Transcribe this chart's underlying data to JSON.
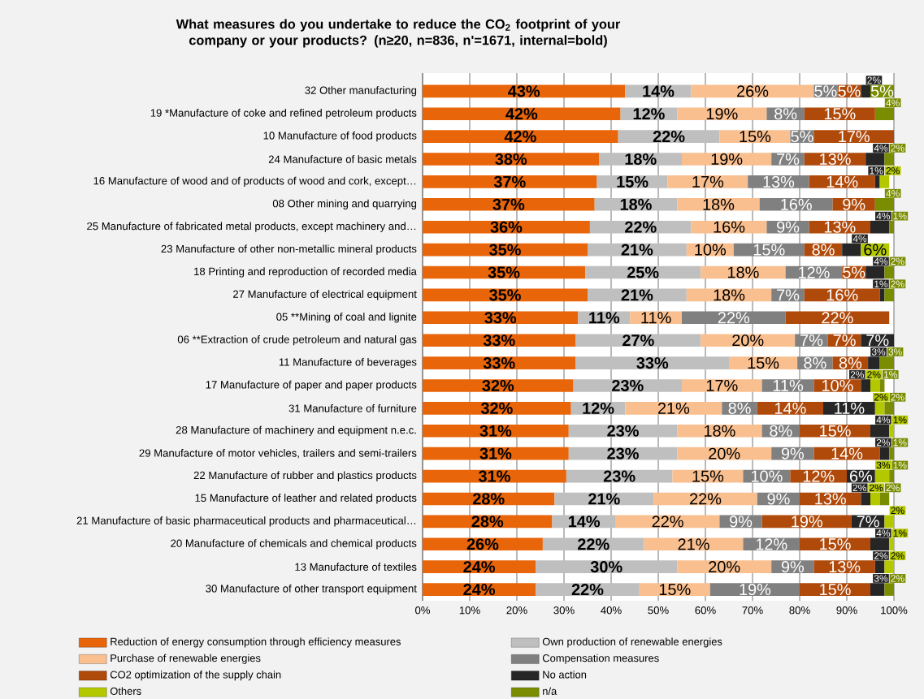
{
  "chart_data": {
    "type": "bar",
    "orientation": "horizontal",
    "stacked": true,
    "title": "What measures do you undertake to reduce the CO$_{2}$ footprint of your company or your products? (n≥20, n=836, n'=1671, internal=bold)",
    "categories": [
      "32 Other manufacturing",
      "19 *Manufacture of coke and refined petroleum products",
      "10 Manufacture of food products",
      "24 Manufacture of basic metals",
      "16 Manufacture of wood and of products of wood and cork, except…",
      "08 Other mining and quarrying",
      "25 Manufacture of fabricated metal products, except machinery and…",
      "23 Manufacture of other non-metallic mineral products",
      "18 Printing and reproduction of recorded media",
      "27 Manufacture of electrical equipment",
      "05 **Mining of coal and lignite",
      "06 **Extraction of crude petroleum and natural gas",
      "11 Manufacture of beverages",
      "17 Manufacture of paper and paper products",
      "31 Manufacture of furniture",
      "28 Manufacture of machinery and equipment n.e.c.",
      "29 Manufacture of motor vehicles, trailers and semi-trailers",
      "22 Manufacture of rubber and plastics products",
      "15 Manufacture of leather and related products",
      "21 Manufacture of basic pharmaceutical products and pharmaceutical…",
      "20 Manufacture of chemicals and chemical products",
      "13 Manufacture of textiles",
      "30 Manufacture of other transport equipment"
    ],
    "series": [
      {
        "name": "Reduction of energy consumption through efficiency measures",
        "color": "#e8650a",
        "values": [
          43,
          42,
          41.5,
          37.5,
          37,
          36.5,
          35.5,
          35,
          34.5,
          35,
          33,
          32.5,
          32.5,
          32,
          31.5,
          31,
          31,
          30.5,
          28,
          27.5,
          25.5,
          24,
          24
        ],
        "value_labels": [
          "43%",
          "42%",
          "42%",
          "38%",
          "37%",
          "37%",
          "36%",
          "35%",
          "35%",
          "35%",
          "33%",
          "33%",
          "33%",
          "32%",
          "32%",
          "31%",
          "31%",
          "31%",
          "28%",
          "28%",
          "26%",
          "24%",
          "24%"
        ]
      },
      {
        "name": "Own production of renewable energies",
        "color": "#bfbfbf",
        "values": [
          14,
          12,
          21.5,
          17.5,
          15,
          17.5,
          21.5,
          21,
          24.5,
          21,
          11,
          26.5,
          32.5,
          23,
          11.5,
          23,
          23,
          22.5,
          21,
          13.5,
          21.5,
          30,
          22
        ],
        "value_labels": [
          "14%",
          "12%",
          "22%",
          "18%",
          "15%",
          "18%",
          "22%",
          "21%",
          "25%",
          "21%",
          "11%",
          "27%",
          "33%",
          "23%",
          "12%",
          "23%",
          "23%",
          "23%",
          "21%",
          "14%",
          "22%",
          "30%",
          "22%"
        ]
      },
      {
        "name": "Purchase of renewable energies",
        "color": "#f9bf8f",
        "values": [
          26,
          19,
          15,
          19,
          17,
          17.5,
          16,
          10,
          18,
          18,
          11,
          20,
          14.5,
          17,
          20.5,
          18,
          20,
          15,
          22,
          22,
          21,
          20,
          15
        ],
        "value_labels": [
          "26%",
          "19%",
          "15%",
          "19%",
          "17%",
          "18%",
          "16%",
          "10%",
          "18%",
          "18%",
          "11%",
          "20%",
          "15%",
          "17%",
          "21%",
          "18%",
          "20%",
          "15%",
          "22%",
          "22%",
          "21%",
          "20%",
          "15%"
        ]
      },
      {
        "name": "Compensation measures",
        "color": "#808080",
        "values": [
          5,
          8,
          5,
          7,
          13,
          15.5,
          9,
          15,
          12,
          7,
          22,
          7,
          7.5,
          11,
          7.5,
          8,
          9,
          10,
          9,
          9,
          12,
          9,
          19
        ],
        "value_labels": [
          "5%",
          "8%",
          "5%",
          "7%",
          "13%",
          "16%",
          "9%",
          "15%",
          "12%",
          "7%",
          "22%",
          "7%",
          "8%",
          "11%",
          "8%",
          "8%",
          "9%",
          "10%",
          "9%",
          "9%",
          "12%",
          "9%",
          "19%"
        ]
      },
      {
        "name": "CO2 optimization of the supply chain",
        "color": "#b04a0b",
        "values": [
          5,
          15,
          17,
          13,
          14,
          9,
          13,
          8,
          5,
          16,
          22,
          7,
          7.5,
          10,
          14,
          15,
          14,
          12,
          13,
          19,
          15,
          13,
          15
        ],
        "value_labels": [
          "5%",
          "15%",
          "17%",
          "13%",
          "14%",
          "9%",
          "13%",
          "8%",
          "5%",
          "16%",
          "22%",
          "7%",
          "8%",
          "10%",
          "14%",
          "15%",
          "14%",
          "12%",
          "13%",
          "19%",
          "15%",
          "13%",
          "15%"
        ]
      },
      {
        "name": "No action",
        "color": "#262626",
        "values": [
          2,
          null,
          null,
          4,
          1,
          null,
          4,
          4,
          4,
          1,
          null,
          7,
          2.5,
          2,
          11,
          4,
          2,
          6,
          2,
          7,
          4,
          2,
          3
        ],
        "value_labels": [
          "2%",
          null,
          null,
          "4%",
          "1%",
          null,
          "4%",
          "4%",
          "4%",
          "1%",
          null,
          "7%",
          "3%",
          "2%",
          "11%",
          "4%",
          "2%",
          "6%",
          "2%",
          "7%",
          "4%",
          "2%",
          "3%"
        ]
      },
      {
        "name": "Others",
        "color": "#b4c800",
        "values": [
          null,
          null,
          null,
          null,
          2,
          null,
          null,
          6,
          null,
          null,
          null,
          null,
          null,
          2,
          2,
          1,
          null,
          3,
          2,
          2,
          1,
          2,
          null
        ],
        "value_labels": [
          null,
          null,
          null,
          null,
          "2%",
          null,
          null,
          "6%",
          null,
          null,
          null,
          null,
          null,
          "2%",
          "2%",
          "1%",
          null,
          "3%",
          "2%",
          "2%",
          "1%",
          "2%",
          null
        ]
      },
      {
        "name": "n/a",
        "color": "#7a8c00",
        "values": [
          5,
          4,
          null,
          2,
          null,
          4,
          1,
          null,
          2,
          2,
          null,
          null,
          3,
          1,
          2,
          null,
          1,
          1,
          2,
          null,
          null,
          null,
          2
        ],
        "value_labels": [
          "5%",
          "4%",
          null,
          "2%",
          null,
          "4%",
          "1%",
          null,
          "2%",
          "2%",
          null,
          null,
          "3%",
          "1%",
          "2%",
          null,
          "1%",
          "1%",
          "2%",
          null,
          null,
          null,
          "2%"
        ]
      }
    ],
    "xlim": [
      0,
      100
    ],
    "xticks": [
      {
        "value": 0,
        "label": "0%"
      },
      {
        "value": 10,
        "label": "10%"
      },
      {
        "value": 20,
        "label": "20%"
      },
      {
        "value": 30,
        "label": "30%"
      },
      {
        "value": 40,
        "label": "40%"
      },
      {
        "value": 50,
        "label": "50%"
      },
      {
        "value": 60,
        "label": "60%"
      },
      {
        "value": 70,
        "label": "70%"
      },
      {
        "value": 80,
        "label": "80%"
      },
      {
        "value": 90,
        "label": "90%"
      },
      {
        "value": 100,
        "label": "100%"
      }
    ],
    "grid": "x",
    "legend": "bottom"
  }
}
